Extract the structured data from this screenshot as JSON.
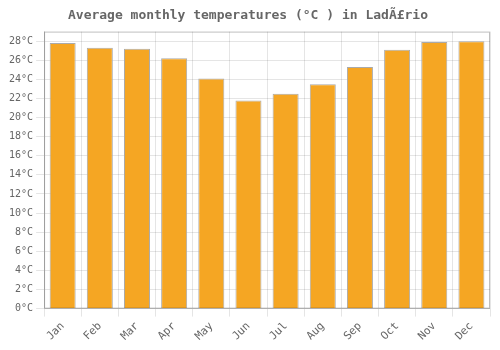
{
  "chart_data": {
    "type": "bar",
    "title": "Average monthly temperatures (°C ) in LadÃ£rio",
    "categories": [
      "Jan",
      "Feb",
      "Mar",
      "Apr",
      "May",
      "Jun",
      "Jul",
      "Aug",
      "Sep",
      "Oct",
      "Nov",
      "Dec"
    ],
    "values": [
      27.8,
      27.3,
      27.2,
      26.2,
      24.1,
      21.8,
      22.5,
      23.5,
      25.3,
      27.1,
      27.9,
      28.0
    ],
    "color": "#F5A623",
    "ylim": [
      0,
      29
    ],
    "yticks": [
      {
        "value": 0,
        "label": "0°C"
      },
      {
        "value": 2,
        "label": "2°C"
      },
      {
        "value": 4,
        "label": "4°C"
      },
      {
        "value": 6,
        "label": "6°C"
      },
      {
        "value": 8,
        "label": "8°C"
      },
      {
        "value": 10,
        "label": "10°C"
      },
      {
        "value": 12,
        "label": "12°C"
      },
      {
        "value": 14,
        "label": "14°C"
      },
      {
        "value": 16,
        "label": "16°C"
      },
      {
        "value": 18,
        "label": "18°C"
      },
      {
        "value": 20,
        "label": "20°C"
      },
      {
        "value": 22,
        "label": "22°C"
      },
      {
        "value": 24,
        "label": "24°C"
      },
      {
        "value": 26,
        "label": "26°C"
      },
      {
        "value": 28,
        "label": "28°C"
      }
    ],
    "grid": true
  }
}
